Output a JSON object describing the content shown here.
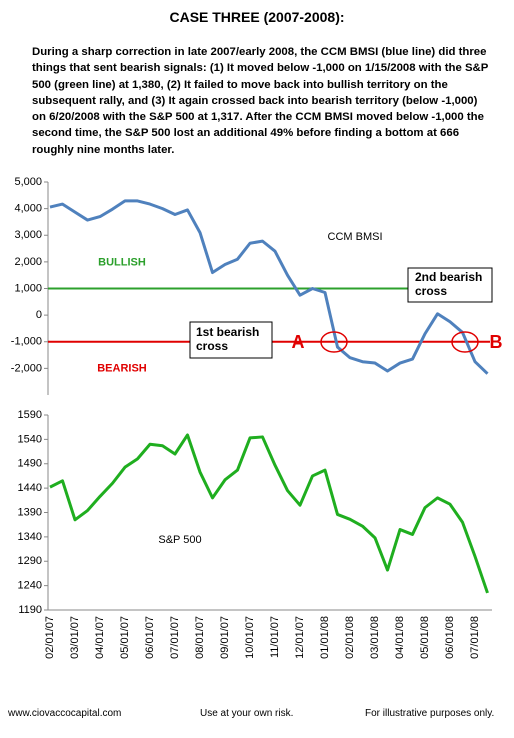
{
  "title": "CASE THREE (2007-2008):",
  "description": "During a sharp correction in late 2007/early 2008, the CCM BMSI (blue line) did three things that sent bearish signals:  (1) It moved below -1,000 on 1/15/2008 with the S&P 500 (green line) at 1,380, (2) It failed to move back into bullish territory on the subsequent rally, and (3) It again crossed back into bearish territory (below -1,000) on 6/20/2008 with the S&P 500 at 1,317.  After the CCM BMSI moved below -1,000 the second time, the S&P 500 lost an additional 49% before finding a bottom at 666 roughly nine months later.",
  "chart_data": [
    {
      "type": "line",
      "ylim": [
        -3000,
        5000
      ],
      "yticks": [
        {
          "value": 5000,
          "label": "5,000"
        },
        {
          "value": 4000,
          "label": "4,000"
        },
        {
          "value": 3000,
          "label": "3,000"
        },
        {
          "value": 2000,
          "label": "2,000"
        },
        {
          "value": 1000,
          "label": "1,000"
        },
        0,
        {
          "value": -1000,
          "label": "-1,000"
        },
        {
          "value": -2000,
          "label": "-2,000"
        }
      ],
      "series": [
        {
          "name": "CCM BMSI",
          "color": "#4f81bd",
          "values": [
            4060,
            4170,
            3870,
            3570,
            3700,
            3980,
            4290,
            4290,
            4170,
            4000,
            3780,
            3950,
            3100,
            1600,
            1900,
            2100,
            2700,
            2780,
            2400,
            1500,
            750,
            1000,
            850,
            -1200,
            -1600,
            -1750,
            -1800,
            -2100,
            -1800,
            -1650,
            -700,
            50,
            -250,
            -650,
            -1750,
            -2200
          ]
        }
      ],
      "reference_lines": [
        {
          "value": 1000,
          "color": "#2ca02c",
          "label": "BULLISH"
        },
        {
          "value": -1000,
          "color": "#e00000",
          "label": "BEARISH"
        }
      ],
      "annotations": {
        "first_cross": [
          "1st bearish",
          "cross"
        ],
        "second_cross": [
          "2nd bearish",
          "cross"
        ],
        "a": "A",
        "b": "B"
      }
    },
    {
      "type": "line",
      "ylim": [
        1190,
        1590
      ],
      "yticks": [
        1590,
        1540,
        1490,
        1440,
        1390,
        1340,
        1290,
        1240,
        1190
      ],
      "categories": [
        "02/01/07",
        null,
        "03/01/07",
        null,
        "04/01/07",
        null,
        "05/01/07",
        null,
        "06/01/07",
        null,
        "07/01/07",
        null,
        "08/01/07",
        null,
        "09/01/07",
        null,
        "10/01/07",
        null,
        "11/01/07",
        null,
        "12/01/07",
        null,
        "01/01/08",
        null,
        "02/01/08",
        null,
        "03/01/08",
        null,
        "04/01/08",
        null,
        "05/01/08",
        null,
        "06/01/08",
        null,
        "07/01/08",
        null
      ],
      "series": [
        {
          "name": "S&P 500",
          "color": "#1fae1f",
          "values": [
            1442,
            1455,
            1375,
            1394,
            1423,
            1450,
            1483,
            1500,
            1530,
            1527,
            1510,
            1549,
            1473,
            1420,
            1457,
            1477,
            1543,
            1545,
            1487,
            1435,
            1405,
            1465,
            1477,
            1386,
            1376,
            1362,
            1338,
            1272,
            1355,
            1345,
            1400,
            1420,
            1407,
            1370,
            1300,
            1225
          ]
        }
      ]
    }
  ],
  "footer": [
    "www.ciovaccocapital.com",
    "Use at your own risk.",
    "For illustrative purposes only."
  ]
}
